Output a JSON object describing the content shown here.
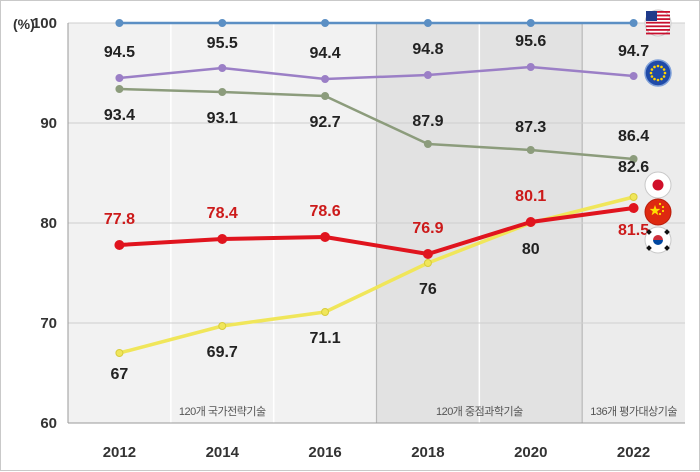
{
  "chart_data": {
    "type": "line",
    "title": "",
    "xlabel": "",
    "ylabel": "(%)",
    "x": [
      "2012",
      "2014",
      "2016",
      "2018",
      "2020",
      "2022"
    ],
    "ylim": [
      60,
      100
    ],
    "yticks": [
      60,
      70,
      80,
      90,
      100
    ],
    "grid": true,
    "legend": "flag icons at right end of each line",
    "series": [
      {
        "id": "usa",
        "values": [
          100,
          100,
          100,
          100,
          100,
          100
        ],
        "color": "#5b8fc4",
        "label_color": "#222222",
        "flag": "usa-flag-icon"
      },
      {
        "id": "eu",
        "values": [
          94.5,
          95.5,
          94.4,
          94.8,
          95.6,
          94.7
        ],
        "color": "#9b7fc6",
        "label_color": "#222222",
        "flag": "eu-flag-icon"
      },
      {
        "id": "japan",
        "values": [
          93.4,
          93.1,
          92.7,
          87.9,
          87.3,
          86.4
        ],
        "color": "#8c9c7c",
        "label_color": "#222222",
        "flag": "japan-flag-icon"
      },
      {
        "id": "korea",
        "values": [
          77.8,
          78.4,
          78.6,
          76.9,
          80.1,
          81.5
        ],
        "color": "#e0141e",
        "label_color": "#cc1a1a",
        "flag": "korea-flag-icon"
      },
      {
        "id": "china",
        "values": [
          67,
          69.7,
          71.1,
          76,
          80,
          82.6
        ],
        "color": "#f0e65a",
        "label_color": "#222222",
        "flag": "china-flag-icon"
      }
    ],
    "notes": [
      "120개 국가전략기술",
      "120개 중점과학기술",
      "136개 평가대상기술"
    ]
  }
}
